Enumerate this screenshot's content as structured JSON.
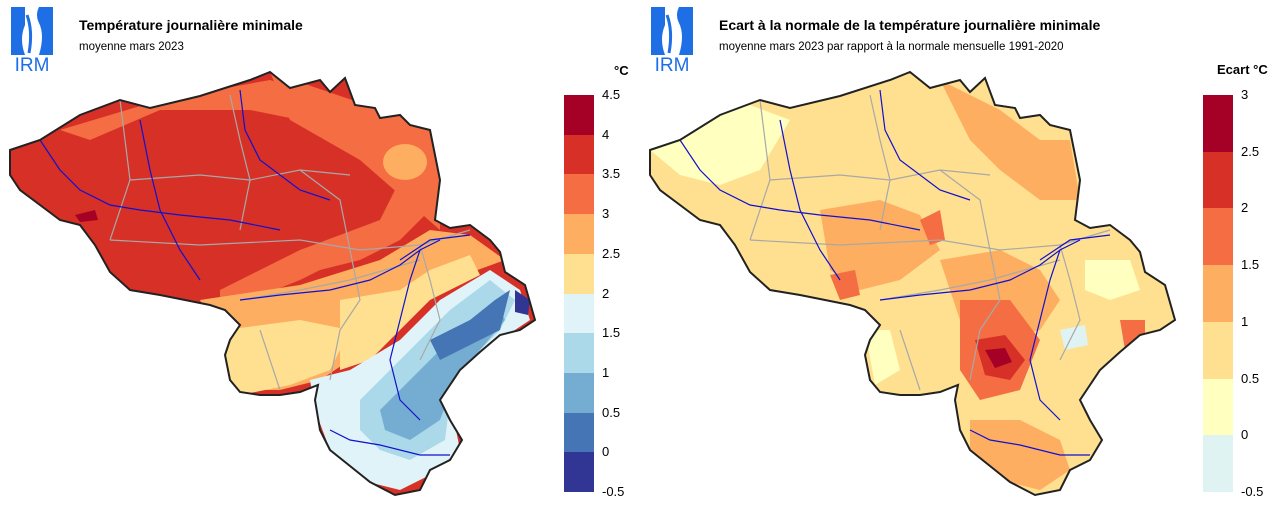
{
  "left_panel": {
    "logo_text": "IRM",
    "title": "Température journalière minimale",
    "subtitle": "moyenne mars 2023",
    "legend_unit": "°C",
    "legend_ticks": [
      "4.5",
      "4",
      "3.5",
      "3",
      "2.5",
      "2",
      "1.5",
      "1",
      "0.5",
      "0",
      "-0.5"
    ],
    "legend_colors": [
      "#a50026",
      "#d73027",
      "#f46d43",
      "#fdae61",
      "#fee090",
      "#e0f3f8",
      "#abd9e9",
      "#74add1",
      "#4575b4",
      "#313695"
    ]
  },
  "right_panel": {
    "logo_text": "IRM",
    "title": "Ecart à la normale de la température journalière minimale",
    "subtitle": "moyenne mars 2023 par rapport à la normale mensuelle 1991-2020",
    "legend_unit": "Ecart °C",
    "legend_ticks": [
      "3",
      "2.5",
      "2",
      "1.5",
      "1",
      "0.5",
      "0",
      "-0.5"
    ],
    "legend_colors": [
      "#a50026",
      "#d73027",
      "#f46d43",
      "#fdae61",
      "#fee090",
      "#ffffbf",
      "#e0f3f3"
    ]
  },
  "colors": {
    "logo_blue": "#1e6ee6",
    "river": "#1010d0",
    "border": "#a8a8a8",
    "outline": "#222222"
  }
}
